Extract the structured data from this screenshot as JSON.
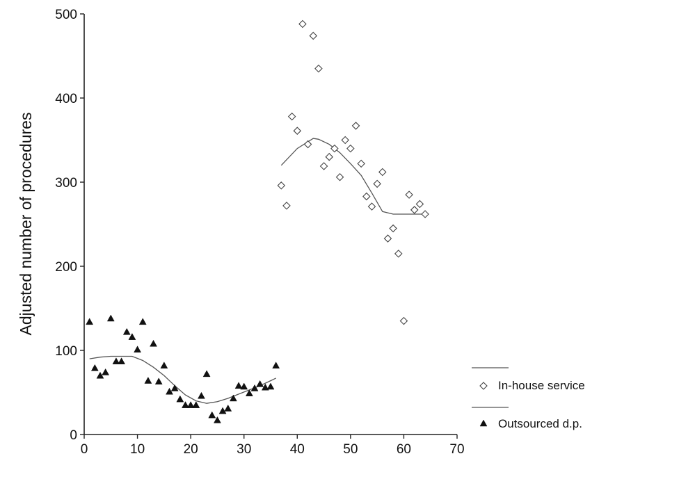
{
  "chart_data": {
    "type": "scatter",
    "title": "",
    "xlabel": "",
    "ylabel": "Adjusted number of procedures",
    "xlim": [
      0,
      70
    ],
    "ylim": [
      0,
      500
    ],
    "xticks": [
      0,
      10,
      20,
      30,
      40,
      50,
      60,
      70
    ],
    "yticks": [
      0,
      100,
      200,
      300,
      400,
      500
    ],
    "grid": false,
    "legend_position": "bottom-right",
    "series": [
      {
        "name": "In-house service",
        "marker": "open-diamond",
        "x": [
          37,
          38,
          39,
          40,
          41,
          42,
          43,
          44,
          45,
          46,
          47,
          48,
          49,
          50,
          51,
          52,
          53,
          54,
          55,
          56,
          57,
          58,
          59,
          60,
          61,
          62,
          63,
          64
        ],
        "y": [
          296,
          272,
          378,
          361,
          488,
          345,
          474,
          435,
          319,
          330,
          340,
          306,
          350,
          340,
          367,
          322,
          283,
          271,
          298,
          312,
          233,
          245,
          215,
          135,
          285,
          267,
          274,
          262
        ],
        "trend": {
          "x": [
            37,
            40,
            43,
            44,
            46,
            48,
            50,
            52,
            54,
            56,
            58,
            60,
            62,
            64
          ],
          "y": [
            320,
            340,
            352,
            351,
            345,
            335,
            322,
            308,
            287,
            265,
            262,
            262,
            262,
            262
          ]
        }
      },
      {
        "name": "Outsourced d.p.",
        "marker": "filled-triangle",
        "x": [
          1,
          2,
          3,
          4,
          5,
          6,
          7,
          8,
          9,
          10,
          11,
          12,
          13,
          14,
          15,
          16,
          17,
          18,
          19,
          20,
          21,
          22,
          23,
          24,
          25,
          26,
          27,
          28,
          29,
          30,
          31,
          32,
          33,
          34,
          35,
          36
        ],
        "y": [
          134,
          79,
          70,
          74,
          138,
          87,
          87,
          122,
          116,
          101,
          134,
          64,
          108,
          63,
          82,
          51,
          55,
          42,
          35,
          35,
          35,
          46,
          72,
          23,
          17,
          28,
          31,
          43,
          58,
          57,
          49,
          55,
          60,
          56,
          57,
          82
        ],
        "trend": {
          "x": [
            1,
            3,
            5,
            7,
            9,
            11,
            13,
            15,
            17,
            19,
            21,
            23,
            25,
            27,
            29,
            31,
            33,
            35,
            36
          ],
          "y": [
            90,
            92,
            93,
            93,
            93,
            88,
            80,
            70,
            58,
            47,
            40,
            37,
            39,
            43,
            48,
            53,
            58,
            64,
            67
          ]
        }
      }
    ]
  }
}
